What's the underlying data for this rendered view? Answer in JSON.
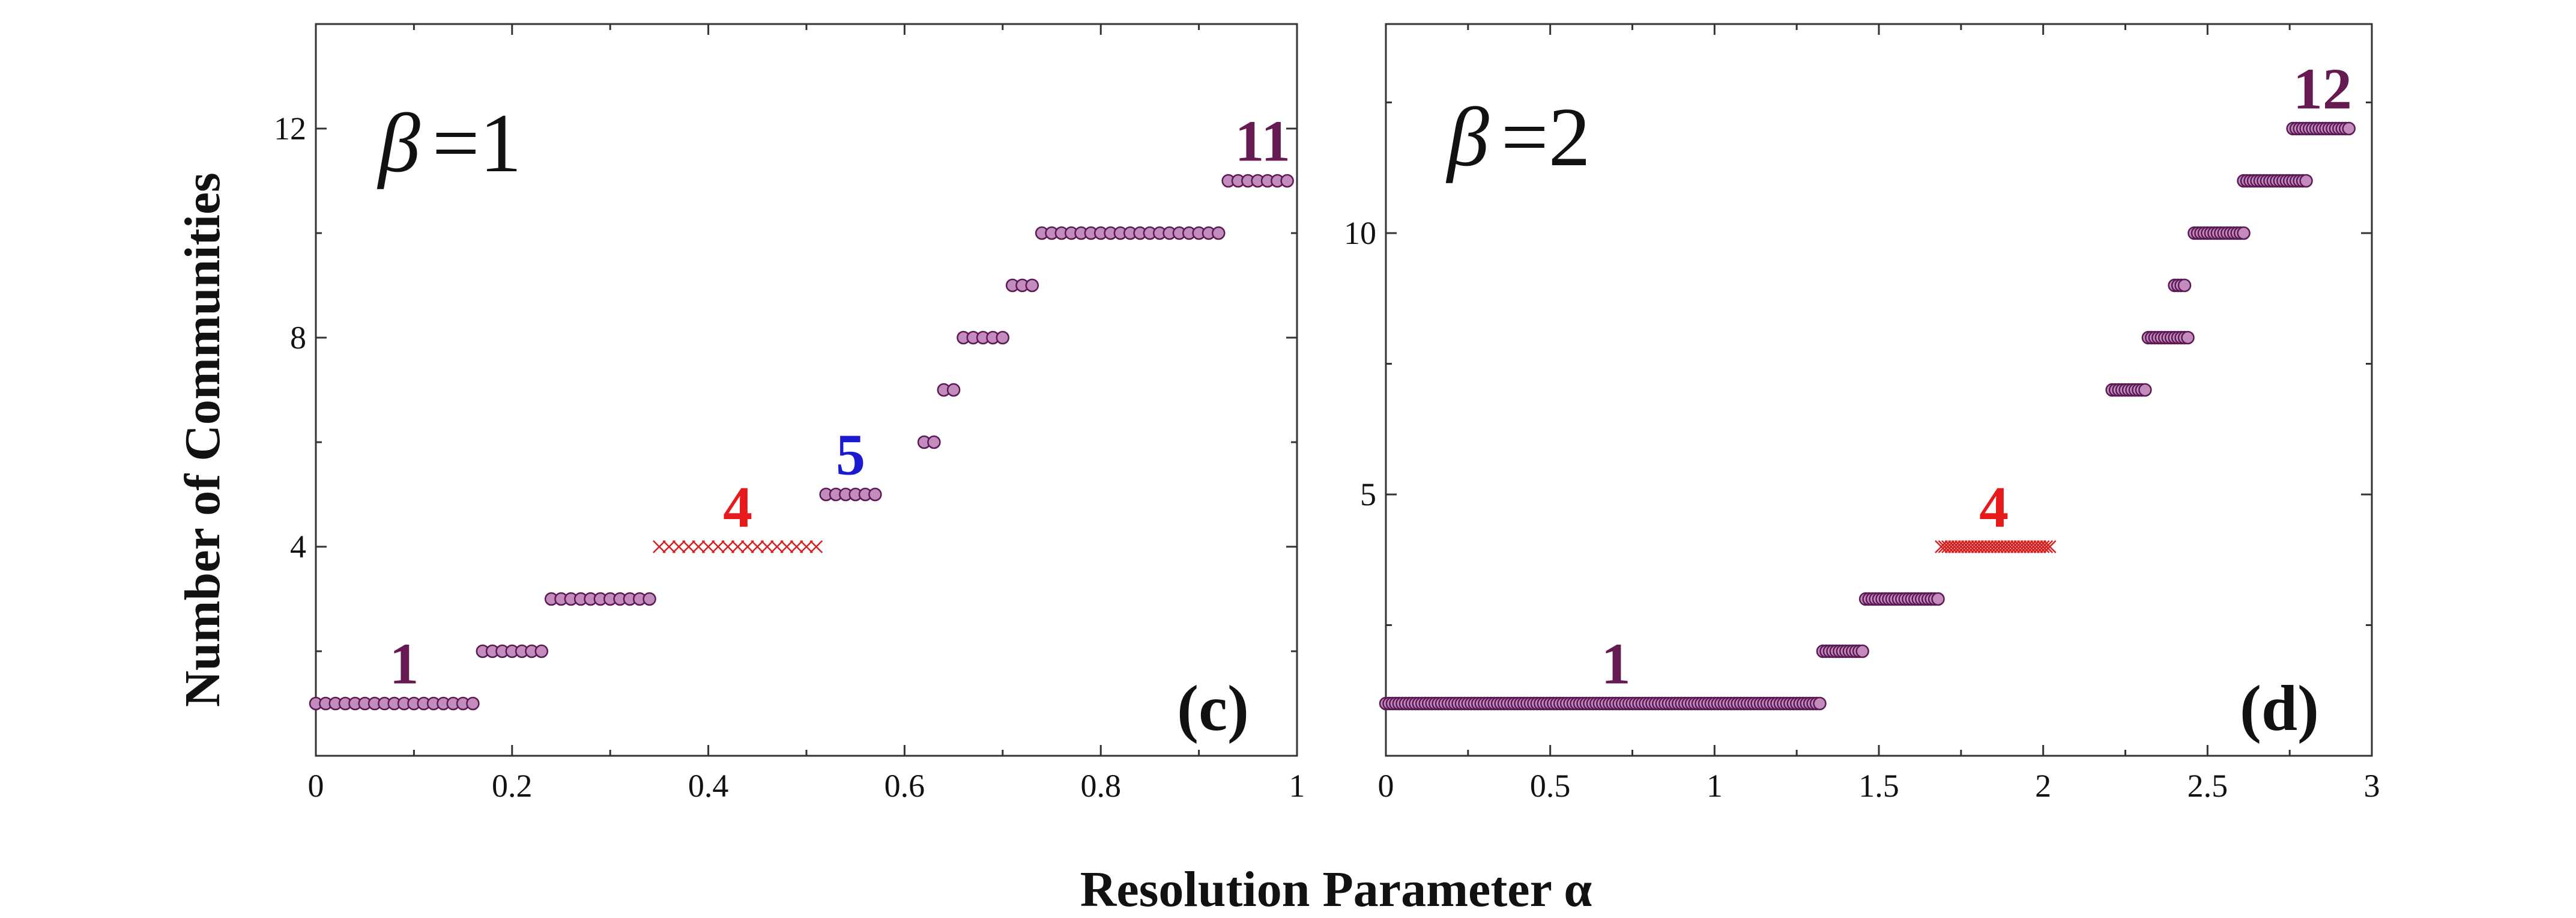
{
  "figure": {
    "ylabel": "Number of Communities",
    "xlabel": "Resolution Parameter  α"
  },
  "colors": {
    "circle_fill": "#c48bbd",
    "circle_stroke": "#5a1a55",
    "cross": "#d42020",
    "annot_main": "#651a52",
    "annot_red": "#e61a1a",
    "annot_blue": "#1a1ad2",
    "axis": "#333333"
  },
  "chart_data": [
    {
      "type": "scatter",
      "panel": "c",
      "panel_label": "(c)",
      "beta_label": "β = 1",
      "beta_symbol": "β",
      "beta_rest": "=1",
      "xlim": [
        0,
        1
      ],
      "ylim": [
        0,
        14
      ],
      "xticks": [
        0,
        0.2,
        0.4,
        0.6,
        0.8,
        1
      ],
      "xtick_labels": [
        "0",
        "0.2",
        "0.4",
        "0.6",
        "0.8",
        "1"
      ],
      "yticks": [
        4,
        8,
        12
      ],
      "ytick_labels": [
        "4",
        "8",
        "12"
      ],
      "minor_yticks": [
        2,
        6,
        10
      ],
      "segments": [
        {
          "value": 1,
          "x_start": 0.0,
          "x_end": 0.16,
          "marker": "circle"
        },
        {
          "value": 2,
          "x_start": 0.17,
          "x_end": 0.23,
          "marker": "circle"
        },
        {
          "value": 3,
          "x_start": 0.24,
          "x_end": 0.34,
          "marker": "circle"
        },
        {
          "value": 4,
          "x_start": 0.35,
          "x_end": 0.51,
          "marker": "cross"
        },
        {
          "value": 5,
          "x_start": 0.52,
          "x_end": 0.57,
          "marker": "circle"
        },
        {
          "value": 6,
          "x_start": 0.62,
          "x_end": 0.63,
          "marker": "circle"
        },
        {
          "value": 7,
          "x_start": 0.64,
          "x_end": 0.65,
          "marker": "circle"
        },
        {
          "value": 8,
          "x_start": 0.66,
          "x_end": 0.7,
          "marker": "circle"
        },
        {
          "value": 9,
          "x_start": 0.71,
          "x_end": 0.73,
          "marker": "circle"
        },
        {
          "value": 10,
          "x_start": 0.74,
          "x_end": 0.92,
          "marker": "circle"
        },
        {
          "value": 11,
          "x_start": 0.93,
          "x_end": 0.99,
          "marker": "circle"
        }
      ],
      "annotations": [
        {
          "text": "1",
          "x": 0.09,
          "y": 1.25,
          "color": "main"
        },
        {
          "text": "4",
          "x": 0.43,
          "y": 4.25,
          "color": "red"
        },
        {
          "text": "5",
          "x": 0.545,
          "y": 5.25,
          "color": "blue"
        },
        {
          "text": "11",
          "x": 0.965,
          "y": 11.25,
          "color": "main"
        }
      ]
    },
    {
      "type": "scatter",
      "panel": "d",
      "panel_label": "(d)",
      "beta_label": "β = 2",
      "beta_symbol": "β",
      "beta_rest": "=2",
      "xlim": [
        0,
        3
      ],
      "ylim": [
        0,
        14
      ],
      "xticks": [
        0,
        0.5,
        1,
        1.5,
        2,
        2.5,
        3
      ],
      "xtick_labels": [
        "0",
        "0.5",
        "1",
        "1.5",
        "2",
        "2.5",
        "3"
      ],
      "yticks": [
        5,
        10
      ],
      "ytick_labels": [
        "5",
        "10"
      ],
      "minor_yticks": [
        2.5,
        7.5,
        12.5
      ],
      "segments": [
        {
          "value": 1,
          "x_start": 0.0,
          "x_end": 1.32,
          "marker": "circle"
        },
        {
          "value": 2,
          "x_start": 1.33,
          "x_end": 1.45,
          "marker": "circle"
        },
        {
          "value": 3,
          "x_start": 1.46,
          "x_end": 1.68,
          "marker": "circle"
        },
        {
          "value": 4,
          "x_start": 1.69,
          "x_end": 2.02,
          "marker": "cross"
        },
        {
          "value": 7,
          "x_start": 2.21,
          "x_end": 2.31,
          "marker": "circle"
        },
        {
          "value": 8,
          "x_start": 2.32,
          "x_end": 2.44,
          "marker": "circle"
        },
        {
          "value": 9,
          "x_start": 2.4,
          "x_end": 2.43,
          "marker": "circle"
        },
        {
          "value": 10,
          "x_start": 2.46,
          "x_end": 2.61,
          "marker": "circle"
        },
        {
          "value": 11,
          "x_start": 2.61,
          "x_end": 2.8,
          "marker": "circle"
        },
        {
          "value": 12,
          "x_start": 2.76,
          "x_end": 2.93,
          "marker": "circle"
        }
      ],
      "annotations": [
        {
          "text": "1",
          "x": 0.7,
          "y": 1.25,
          "color": "main"
        },
        {
          "text": "4",
          "x": 1.85,
          "y": 4.25,
          "color": "red"
        },
        {
          "text": "12",
          "x": 2.85,
          "y": 12.25,
          "color": "main"
        }
      ]
    }
  ]
}
